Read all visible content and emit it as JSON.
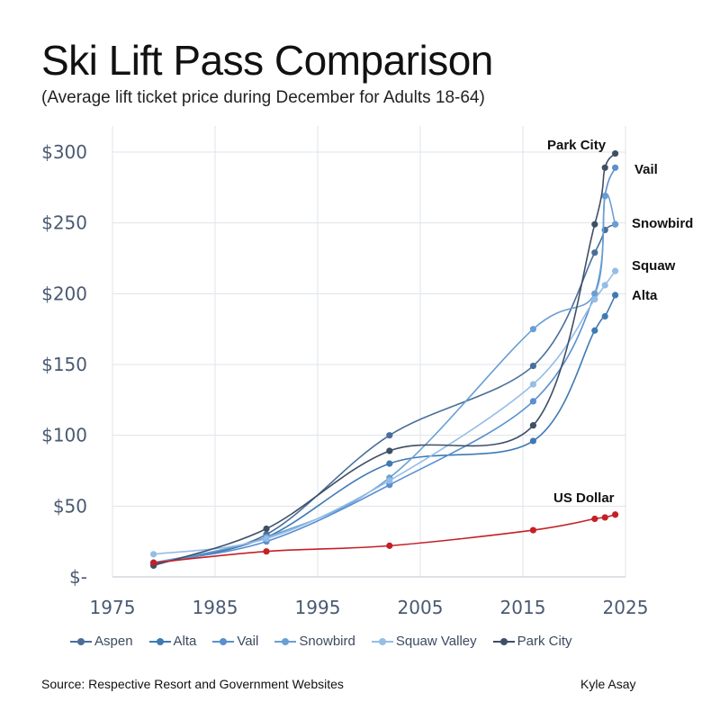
{
  "chart_data": {
    "type": "line",
    "title": "Ski Lift Pass Comparison",
    "subtitle": "(Average lift ticket price during December for Adults 18-64)",
    "xlabel": "",
    "ylabel": "",
    "xlim": [
      1975,
      2025
    ],
    "ylim": [
      0,
      300
    ],
    "x_ticks": [
      1975,
      1985,
      1995,
      2005,
      2015,
      2025
    ],
    "x_tick_labels": [
      "1975",
      "1985",
      "1995",
      "2005",
      "2015",
      "2025"
    ],
    "y_ticks": [
      0,
      50,
      100,
      150,
      200,
      250,
      300
    ],
    "y_tick_labels": [
      "$-",
      "$50",
      "$100",
      "$150",
      "$200",
      "$250",
      "$300"
    ],
    "grid": true,
    "series": [
      {
        "name": "Aspen",
        "color": "#4a6e9a",
        "points": [
          [
            1979,
            10
          ],
          [
            1990,
            30
          ],
          [
            2002,
            100
          ],
          [
            2016,
            149
          ],
          [
            2022,
            229
          ],
          [
            2023,
            245
          ],
          [
            2024,
            249
          ]
        ]
      },
      {
        "name": "Alta",
        "color": "#3f7ab2",
        "points": [
          [
            1979,
            9
          ],
          [
            1990,
            28
          ],
          [
            2002,
            80
          ],
          [
            2016,
            96
          ],
          [
            2022,
            174
          ],
          [
            2023,
            184
          ],
          [
            2024,
            199
          ]
        ]
      },
      {
        "name": "Vail",
        "color": "#5a8fd0",
        "points": [
          [
            1979,
            10
          ],
          [
            1990,
            25
          ],
          [
            2002,
            65
          ],
          [
            2016,
            124
          ],
          [
            2022,
            200
          ],
          [
            2023,
            269
          ],
          [
            2024,
            289
          ]
        ]
      },
      {
        "name": "Snowbird",
        "color": "#6a9fd2",
        "points": [
          [
            1979,
            10
          ],
          [
            1990,
            28
          ],
          [
            2002,
            70
          ],
          [
            2016,
            175
          ],
          [
            2022,
            200
          ],
          [
            2023,
            269
          ],
          [
            2024,
            249
          ]
        ]
      },
      {
        "name": "Squaw Valley",
        "color": "#95bde6",
        "points": [
          [
            1979,
            16
          ],
          [
            1990,
            27
          ],
          [
            2002,
            68
          ],
          [
            2016,
            136
          ],
          [
            2022,
            196
          ],
          [
            2023,
            206
          ],
          [
            2024,
            216
          ]
        ]
      },
      {
        "name": "Park City",
        "color": "#3f4f66",
        "points": [
          [
            1979,
            8
          ],
          [
            1990,
            34
          ],
          [
            2002,
            89
          ],
          [
            2016,
            107
          ],
          [
            2022,
            249
          ],
          [
            2023,
            289
          ],
          [
            2024,
            299
          ]
        ]
      },
      {
        "name": "US Dollar",
        "color": "#c42026",
        "points": [
          [
            1979,
            10
          ],
          [
            1990,
            18
          ],
          [
            2002,
            22
          ],
          [
            2016,
            33
          ],
          [
            2022,
            41
          ],
          [
            2023,
            42
          ],
          [
            2024,
            44
          ]
        ]
      }
    ],
    "end_labels": [
      {
        "series": "Park City",
        "text": "Park City"
      },
      {
        "series": "Vail",
        "text": "Vail"
      },
      {
        "series": "Snowbird",
        "text": "Snowbird"
      },
      {
        "series": "Squaw Valley",
        "text": "Squaw"
      },
      {
        "series": "Alta",
        "text": "Alta"
      },
      {
        "series": "US Dollar",
        "text": "US Dollar"
      }
    ],
    "legend": [
      "Aspen",
      "Alta",
      "Vail",
      "Snowbird",
      "Squaw Valley",
      "Park City"
    ],
    "legend_position": "bottom"
  },
  "footer": {
    "source": "Source: Respective Resort and Government Websites",
    "author": "Kyle Asay"
  }
}
